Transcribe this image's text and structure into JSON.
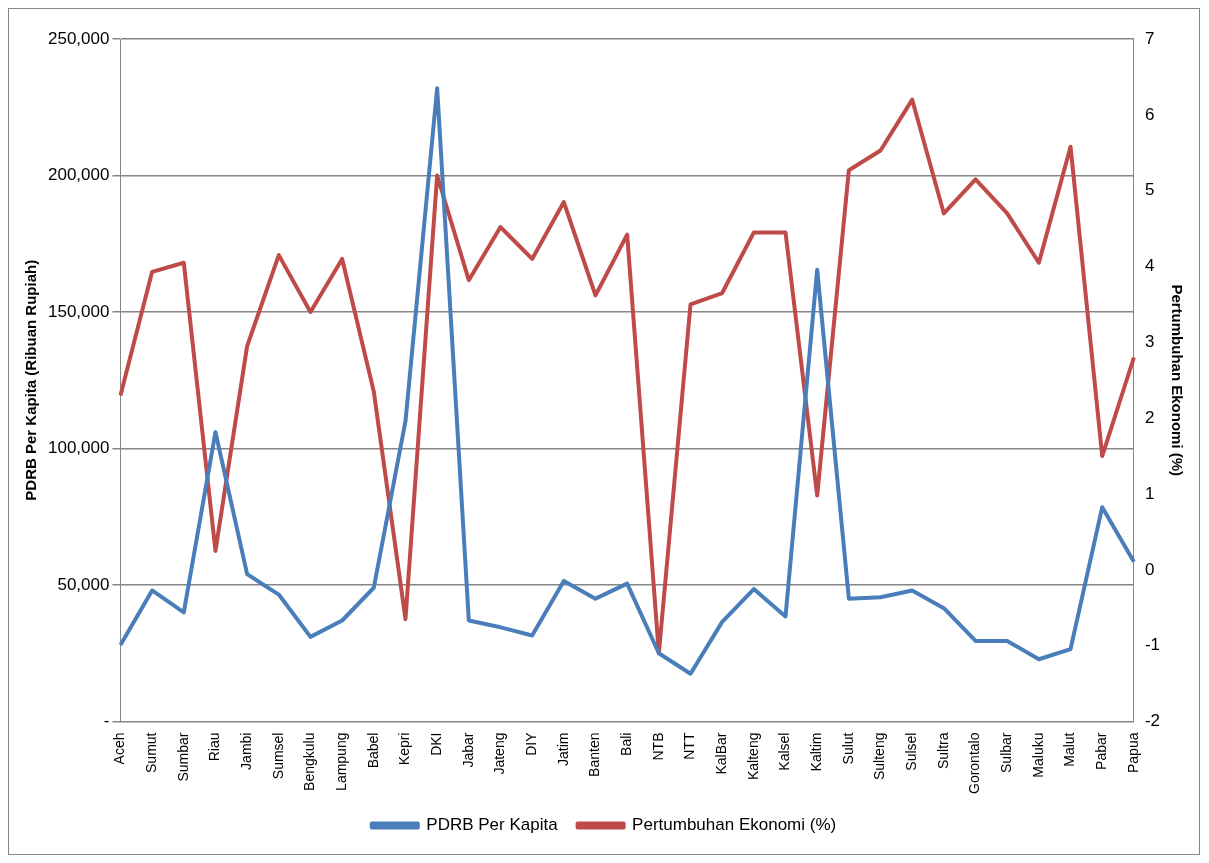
{
  "chart_data": {
    "type": "line",
    "ylabel": "PDRB Per Kapita (Ribuan Rupiah)",
    "y2label": "Pertumbuhan Ekonomi (%)",
    "categories": [
      "Aceh",
      "Sumut",
      "Sumbar",
      "Riau",
      "Jambi",
      "Sumsel",
      "Bengkulu",
      "Lampung",
      "Babel",
      "Kepri",
      "DKI",
      "Jabar",
      "Jateng",
      "DIY",
      "Jatim",
      "Banten",
      "Bali",
      "NTB",
      "NTT",
      "KalBar",
      "Kalteng",
      "Kalsel",
      "Kaltim",
      "Sulut",
      "Sulteng",
      "Sulsel",
      "Sultra",
      "Gorontalo",
      "Sulbar",
      "Maluku",
      "Malut",
      "Pabar",
      "Papua"
    ],
    "series": [
      {
        "name": "PDRB Per Kapita",
        "color": "#4a7ebb",
        "values": [
          28000,
          48000,
          40000,
          106000,
          54000,
          46500,
          31000,
          37000,
          49000,
          110000,
          232000,
          37000,
          34500,
          31500,
          51500,
          45000,
          50500,
          25000,
          17500,
          36500,
          48500,
          38500,
          165500,
          45000,
          45500,
          48000,
          41500,
          29500,
          29500,
          22800,
          26500,
          78500,
          58500
        ]
      },
      {
        "name": "Pertumbuhan Ekonomi (%)",
        "color": "#be4b48",
        "axis": "y2",
        "values": [
          2.3,
          3.93,
          4.05,
          0.25,
          2.95,
          4.15,
          3.4,
          4.1,
          2.35,
          -0.65,
          5.2,
          3.82,
          4.52,
          4.1,
          4.85,
          3.62,
          4.42,
          -1.1,
          3.5,
          3.65,
          4.45,
          4.45,
          0.98,
          5.27,
          5.53,
          6.2,
          4.7,
          5.15,
          4.7,
          4.05,
          5.58,
          1.5,
          2.8
        ]
      }
    ],
    "ylim": [
      0,
      250000
    ],
    "yticks": [
      {
        "value": 0,
        "label": "-"
      },
      {
        "value": 50000,
        "label": "50,000"
      },
      {
        "value": 100000,
        "label": "100,000"
      },
      {
        "value": 150000,
        "label": "150,000"
      },
      {
        "value": 200000,
        "label": "200,000"
      },
      {
        "value": 250000,
        "label": "250,000"
      }
    ],
    "y2lim": [
      -2,
      7
    ],
    "y2ticks": [
      -2,
      -1,
      0,
      1,
      2,
      3,
      4,
      5,
      6,
      7
    ],
    "grid": "y",
    "legend": "bottom",
    "marker": "none",
    "line_style": "solid"
  }
}
